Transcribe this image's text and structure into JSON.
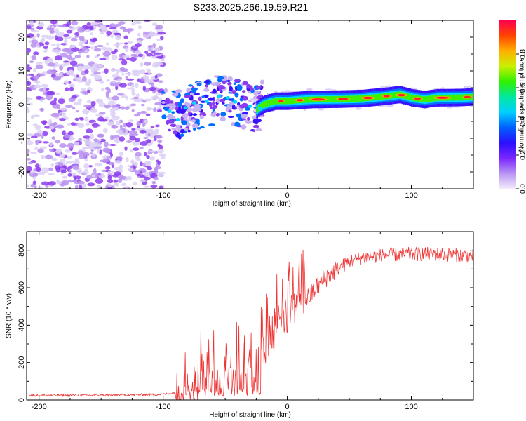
{
  "figure_title": "S233.2025.266.19.59.R21",
  "chart_data": [
    {
      "type": "heatmap",
      "title": "",
      "xlabel": "Height of straight line (km)",
      "ylabel": "Frequency (Hz)",
      "xlim": [
        -210,
        150
      ],
      "ylim": [
        -25,
        25
      ],
      "xticks": [
        -200,
        -100,
        0,
        100
      ],
      "yticks": [
        -20,
        -10,
        0,
        10,
        20
      ],
      "colorbar": {
        "label": "Normalized spectral amplitude",
        "range": [
          0,
          1
        ],
        "ticks": [
          0.0,
          0.2,
          0.4,
          0.6,
          0.8
        ],
        "colors": [
          "#ffffff",
          "#d8c8f2",
          "#8c3cf0",
          "#3a12ff",
          "#0070ff",
          "#00d8ff",
          "#00e890",
          "#40f000",
          "#d0f000",
          "#ffb000",
          "#ff4a00",
          "#ff004a"
        ]
      },
      "signal_track": {
        "description": "carrier frequency centre",
        "points": [
          [
            -100,
            -1
          ],
          [
            -95,
            -2
          ],
          [
            -90,
            -3
          ],
          [
            -85,
            -2.5
          ],
          [
            -80,
            -1
          ],
          [
            -70,
            0
          ],
          [
            -60,
            1
          ],
          [
            -50,
            2
          ],
          [
            -40,
            0.5
          ],
          [
            -30,
            -1
          ],
          [
            -25,
            -1.5
          ],
          [
            -20,
            0
          ],
          [
            -10,
            1
          ],
          [
            0,
            1
          ],
          [
            10,
            1.3
          ],
          [
            20,
            1.5
          ],
          [
            40,
            1.6
          ],
          [
            60,
            1.8
          ],
          [
            80,
            2.5
          ],
          [
            90,
            3
          ],
          [
            100,
            2
          ],
          [
            110,
            1.5
          ],
          [
            120,
            2
          ],
          [
            140,
            2.1
          ],
          [
            150,
            2.3
          ]
        ]
      }
    },
    {
      "type": "line",
      "title": "",
      "xlabel": "Height of straight line (km)",
      "ylabel": "SNR (10 * v/v)",
      "xlim": [
        -210,
        150
      ],
      "ylim": [
        0,
        900
      ],
      "xticks": [
        -200,
        -100,
        0,
        100
      ],
      "yticks": [
        0,
        200,
        400,
        600,
        800
      ],
      "series": [
        {
          "name": "SNR",
          "color": "#ee3333",
          "envelope": [
            [
              -210,
              25
            ],
            [
              -150,
              25
            ],
            [
              -100,
              30
            ],
            [
              -90,
              40
            ],
            [
              -85,
              60
            ],
            [
              -80,
              90
            ],
            [
              -70,
              110
            ],
            [
              -60,
              110
            ],
            [
              -50,
              120
            ],
            [
              -40,
              140
            ],
            [
              -30,
              160
            ],
            [
              -25,
              200
            ],
            [
              -20,
              260
            ],
            [
              -15,
              320
            ],
            [
              -10,
              380
            ],
            [
              -5,
              420
            ],
            [
              0,
              460
            ],
            [
              10,
              500
            ],
            [
              20,
              570
            ],
            [
              30,
              650
            ],
            [
              40,
              700
            ],
            [
              50,
              740
            ],
            [
              60,
              760
            ],
            [
              80,
              775
            ],
            [
              100,
              780
            ],
            [
              120,
              780
            ],
            [
              150,
              770
            ]
          ]
        }
      ]
    }
  ]
}
